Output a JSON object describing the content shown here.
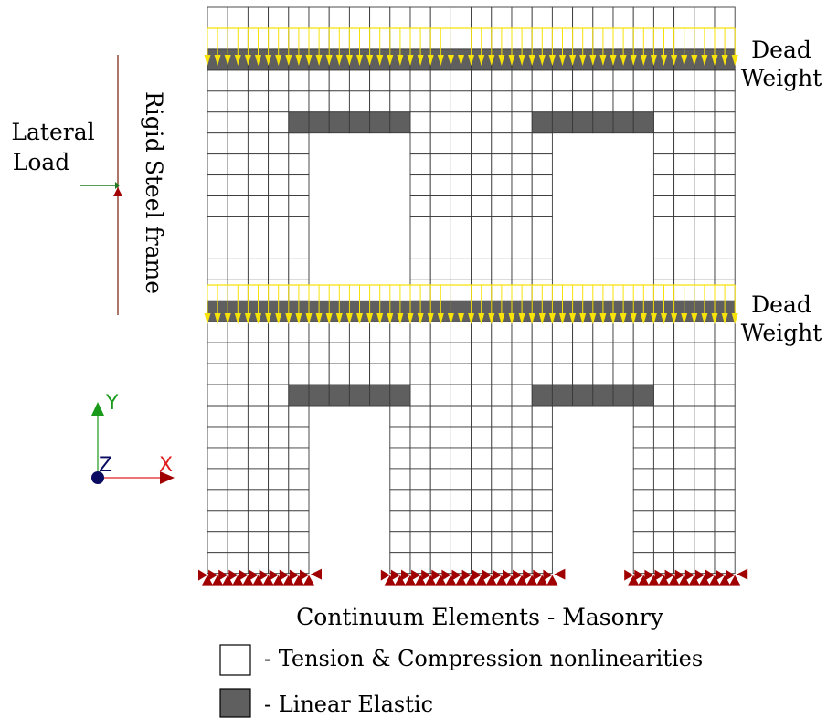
{
  "labels": {
    "lateral_load": [
      "Lateral",
      "Load"
    ],
    "rigid_frame": "Rigid Steel frame",
    "dead_weight": [
      "Dead",
      "Weight"
    ]
  },
  "axes": {
    "y": "Y",
    "z": "Z",
    "x": "X"
  },
  "legend": {
    "title": "Continuum Elements - Masonry",
    "items": [
      {
        "text": "- Tension & Compression nonlinearities",
        "fill": "#ffffff"
      },
      {
        "text": "- Linear Elastic",
        "fill": "#5f5f5f"
      }
    ]
  },
  "colors": {
    "mesh": "#3a3a3a",
    "elastic": "#5f5f5f",
    "load_yellow": "#f7e20a",
    "support_red": "#a00000",
    "axis_y": "#1a9a1a",
    "axis_x": "#e02020",
    "axis_z": "#0a0a60"
  }
}
